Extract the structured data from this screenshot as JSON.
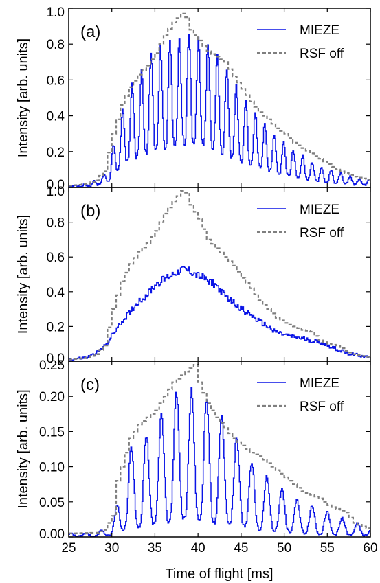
{
  "figure": {
    "xlabel": "Time of flight [ms]",
    "xticks": [
      "25",
      "30",
      "35",
      "40",
      "45",
      "50",
      "55",
      "60"
    ]
  },
  "chart_data": [
    {
      "type": "line",
      "panel_label": "(a)",
      "ylabel": "Intensity [arb. units]",
      "xlim": [
        25,
        60
      ],
      "ylim": [
        0,
        1.0
      ],
      "yticks": [
        "0.0",
        "0.2",
        "0.4",
        "0.6",
        "0.8",
        "1.0"
      ],
      "legend": "top-right",
      "mieze_modulation": {
        "period_ms": 1.1,
        "phase_ms": 31.2,
        "min_fraction": 0.28
      },
      "series": [
        {
          "name": "MIEZE",
          "color": "#0a14e6",
          "style": "solid",
          "envelope": {
            "x": [
              25,
              27,
              28,
              29,
              29.6,
              30.5,
              31,
              31.5,
              32,
              33,
              34,
              35,
              36,
              37,
              38,
              39,
              40,
              41,
              42,
              43,
              44,
              45,
              46,
              47,
              48,
              49,
              50,
              51,
              52,
              53,
              54,
              55,
              56,
              57,
              58,
              59,
              60
            ],
            "y": [
              0.01,
              0.02,
              0.04,
              0.07,
              0.14,
              0.3,
              0.42,
              0.48,
              0.55,
              0.62,
              0.7,
              0.78,
              0.8,
              0.82,
              0.85,
              0.86,
              0.84,
              0.8,
              0.76,
              0.68,
              0.6,
              0.52,
              0.45,
              0.4,
              0.34,
              0.29,
              0.25,
              0.21,
              0.18,
              0.15,
              0.12,
              0.1,
              0.09,
              0.07,
              0.06,
              0.05,
              0.05
            ]
          }
        },
        {
          "name": "RSF off",
          "color": "#7f7f7f",
          "style": "dashed",
          "x": [
            25,
            27,
            28,
            29,
            30,
            31,
            32,
            33,
            34,
            35,
            36,
            37,
            38,
            38.5,
            39,
            40,
            41,
            42,
            43,
            44,
            45,
            46,
            47,
            48,
            49,
            50,
            51,
            52,
            53,
            54,
            55,
            56,
            57,
            58,
            59,
            60
          ],
          "y": [
            0.01,
            0.02,
            0.04,
            0.09,
            0.3,
            0.46,
            0.56,
            0.63,
            0.68,
            0.75,
            0.85,
            0.92,
            0.97,
            0.95,
            0.88,
            0.82,
            0.76,
            0.73,
            0.7,
            0.62,
            0.55,
            0.48,
            0.42,
            0.38,
            0.33,
            0.3,
            0.25,
            0.22,
            0.19,
            0.16,
            0.13,
            0.1,
            0.08,
            0.06,
            0.05,
            0.04
          ]
        }
      ]
    },
    {
      "type": "line",
      "panel_label": "(b)",
      "ylabel": "Intensity [arb. units]",
      "xlim": [
        25,
        60
      ],
      "ylim": [
        0,
        1.0
      ],
      "yticks": [
        "0.0",
        "0.2",
        "0.4",
        "0.6",
        "0.8",
        "1.0"
      ],
      "legend": "top-right",
      "series": [
        {
          "name": "MIEZE",
          "color": "#0a14e6",
          "style": "solid",
          "x": [
            25,
            27,
            28,
            29,
            30,
            31,
            32,
            33,
            34,
            35,
            36,
            37,
            38,
            39,
            40,
            41,
            42,
            43,
            44,
            45,
            46,
            47,
            48,
            49,
            50,
            51,
            52,
            53,
            54,
            55,
            56,
            57,
            58,
            59,
            60
          ],
          "y": [
            0.01,
            0.02,
            0.04,
            0.08,
            0.15,
            0.22,
            0.28,
            0.34,
            0.38,
            0.44,
            0.47,
            0.5,
            0.53,
            0.52,
            0.49,
            0.47,
            0.44,
            0.38,
            0.34,
            0.3,
            0.27,
            0.23,
            0.2,
            0.17,
            0.15,
            0.14,
            0.13,
            0.12,
            0.11,
            0.09,
            0.07,
            0.05,
            0.04,
            0.03,
            0.02
          ]
        },
        {
          "name": "RSF off",
          "color": "#7f7f7f",
          "style": "dashed",
          "x": [
            25,
            27,
            28,
            29,
            30,
            31,
            32,
            33,
            34,
            35,
            36,
            37,
            38,
            38.5,
            39,
            40,
            41,
            42,
            43,
            44,
            45,
            46,
            47,
            48,
            49,
            50,
            51,
            52,
            53,
            54,
            55,
            56,
            57,
            58,
            59,
            60
          ],
          "y": [
            0.01,
            0.02,
            0.04,
            0.09,
            0.3,
            0.46,
            0.56,
            0.63,
            0.68,
            0.75,
            0.85,
            0.92,
            0.98,
            0.97,
            0.9,
            0.82,
            0.7,
            0.65,
            0.6,
            0.55,
            0.48,
            0.42,
            0.35,
            0.3,
            0.25,
            0.22,
            0.2,
            0.18,
            0.17,
            0.12,
            0.1,
            0.09,
            0.06,
            0.04,
            0.03,
            0.02
          ]
        }
      ]
    },
    {
      "type": "line",
      "panel_label": "(c)",
      "ylabel": "Intensity [arb. units]",
      "xlim": [
        25,
        60
      ],
      "ylim": [
        0,
        0.25
      ],
      "yticks": [
        "0.00",
        "0.05",
        "0.10",
        "0.15",
        "0.20",
        "0.25"
      ],
      "legend": "top-right",
      "mieze_modulation": {
        "period_ms": 1.75,
        "phase_ms": 32.2,
        "min_fraction": 0.12
      },
      "series": [
        {
          "name": "MIEZE",
          "color": "#0a14e6",
          "style": "solid",
          "envelope": {
            "x": [
              25,
              28,
              29,
              30,
              31,
              32,
              33,
              34,
              35,
              36,
              37,
              38,
              39,
              40,
              41,
              42,
              43,
              44,
              45,
              46,
              47,
              48,
              49,
              50,
              51,
              52,
              53,
              54,
              55,
              56,
              57,
              58,
              59,
              60
            ],
            "y": [
              0.005,
              0.006,
              0.01,
              0.02,
              0.07,
              0.125,
              0.13,
              0.145,
              0.16,
              0.18,
              0.2,
              0.21,
              0.21,
              0.205,
              0.195,
              0.18,
              0.165,
              0.15,
              0.13,
              0.11,
              0.095,
              0.085,
              0.075,
              0.065,
              0.055,
              0.05,
              0.045,
              0.04,
              0.035,
              0.03,
              0.025,
              0.02,
              0.018,
              0.015
            ]
          }
        },
        {
          "name": "RSF off",
          "color": "#7f7f7f",
          "style": "dashed",
          "x": [
            25,
            28,
            29,
            30,
            30.5,
            31,
            32,
            33,
            34,
            35,
            36,
            37,
            38,
            39,
            39.5,
            40,
            41,
            42,
            43,
            44,
            45,
            46,
            47,
            48,
            49,
            50,
            51,
            52,
            53,
            54,
            55,
            56,
            57,
            58,
            59,
            60
          ],
          "y": [
            0.005,
            0.006,
            0.01,
            0.03,
            0.08,
            0.1,
            0.14,
            0.16,
            0.17,
            0.18,
            0.2,
            0.22,
            0.23,
            0.24,
            0.245,
            0.22,
            0.19,
            0.17,
            0.155,
            0.14,
            0.13,
            0.12,
            0.115,
            0.105,
            0.095,
            0.085,
            0.075,
            0.065,
            0.06,
            0.055,
            0.045,
            0.04,
            0.035,
            0.02,
            0.015,
            0.01
          ]
        }
      ]
    }
  ]
}
